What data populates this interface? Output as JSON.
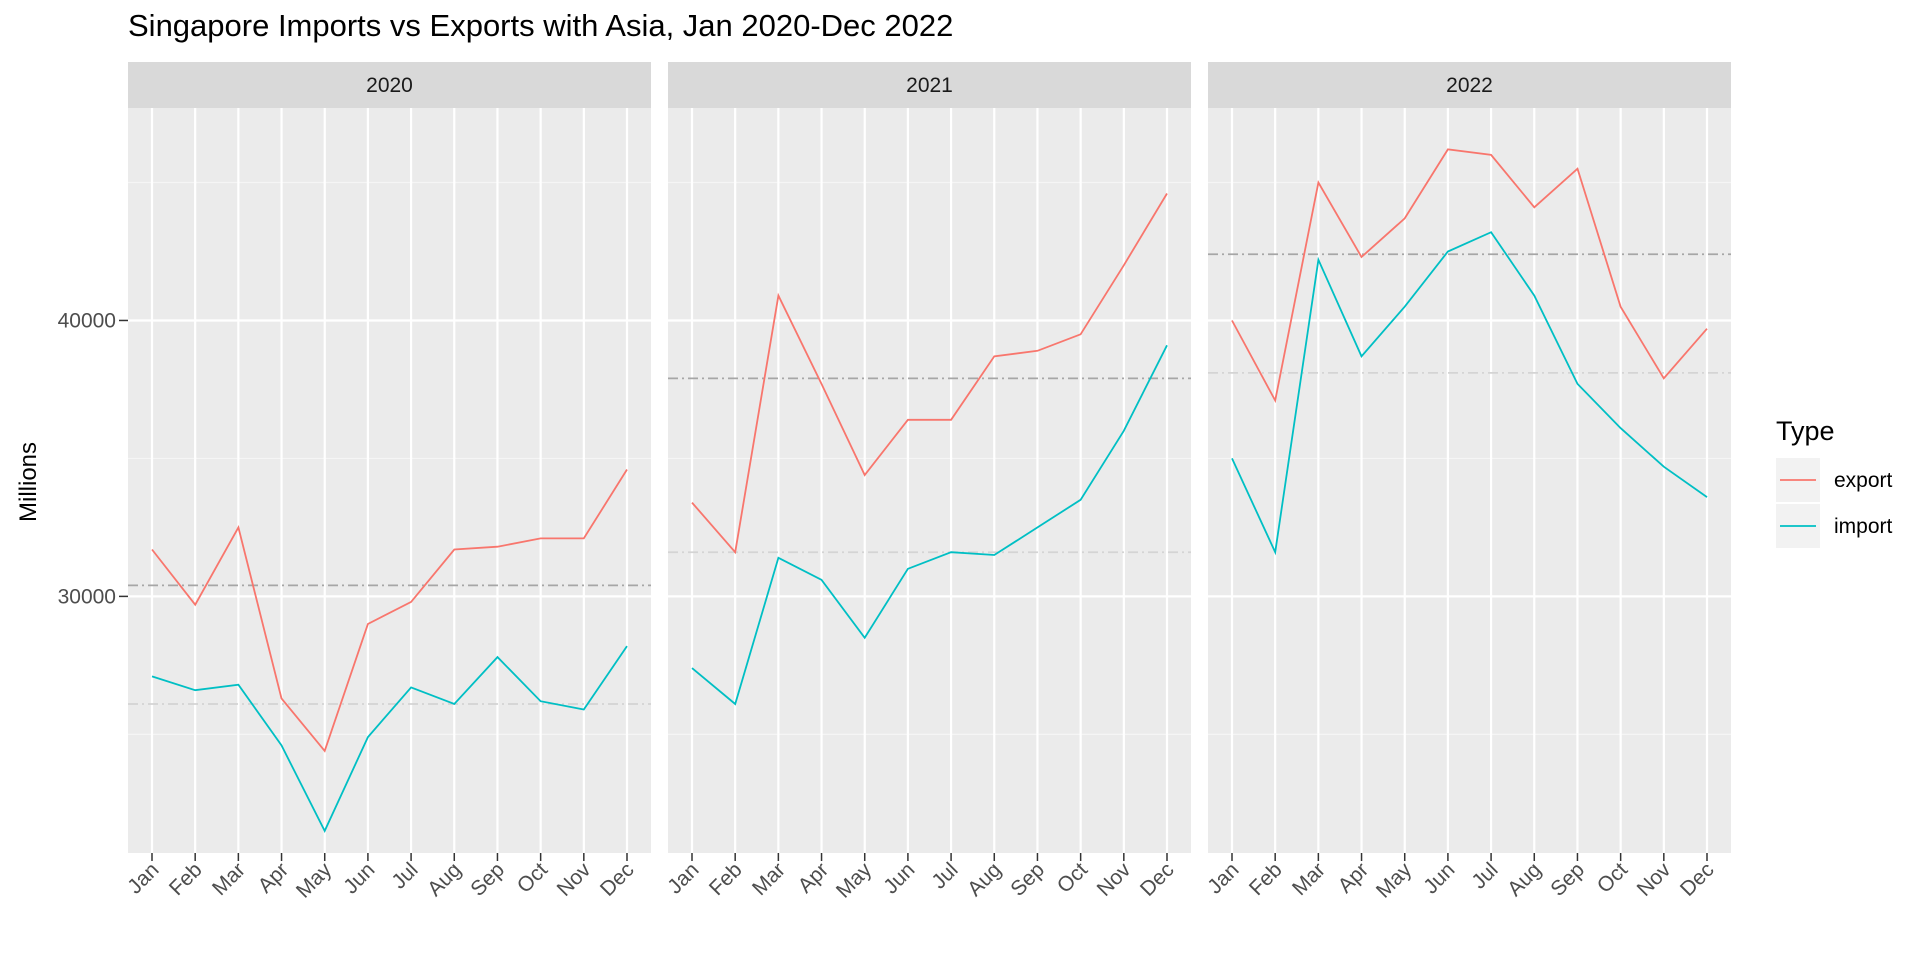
{
  "chart_data": {
    "type": "line",
    "title": "Singapore Imports vs Exports with Asia, Jan 2020-Dec 2022",
    "xlabel": "",
    "ylabel": "Millions",
    "ylim": [
      20700,
      47700
    ],
    "y_ticks": [
      30000,
      40000
    ],
    "grid": true,
    "facets": [
      "2020",
      "2021",
      "2022"
    ],
    "categories": [
      "Jan",
      "Feb",
      "Mar",
      "Apr",
      "May",
      "Jun",
      "Jul",
      "Aug",
      "Sep",
      "Oct",
      "Nov",
      "Dec"
    ],
    "legend": {
      "title": "Type",
      "position": "right"
    },
    "series": [
      {
        "name": "export",
        "color": "#F8766D",
        "values": {
          "2020": [
            31700,
            29700,
            32500,
            26300,
            24400,
            29000,
            29800,
            31700,
            31800,
            32100,
            32100,
            34600
          ],
          "2021": [
            33400,
            31600,
            40900,
            37700,
            34400,
            36400,
            36400,
            38700,
            38900,
            39500,
            42000,
            44600
          ],
          "2022": [
            40000,
            37100,
            45000,
            42300,
            43700,
            46200,
            46000,
            44100,
            45500,
            40500,
            37900,
            39700
          ]
        }
      },
      {
        "name": "import",
        "color": "#00BFC4",
        "values": {
          "2020": [
            27100,
            26600,
            26800,
            24600,
            21500,
            24900,
            26700,
            26100,
            27800,
            26200,
            25900,
            28200
          ],
          "2021": [
            27400,
            26100,
            31400,
            30600,
            28500,
            31000,
            31600,
            31500,
            32500,
            33500,
            36000,
            39100
          ],
          "2022": [
            35000,
            31600,
            42200,
            38700,
            40500,
            42500,
            43200,
            40900,
            37700,
            36100,
            34700,
            33600
          ]
        }
      }
    ],
    "reference_lines": [
      {
        "series": "export",
        "color": "#a6a6a6",
        "values": {
          "2020": 30400,
          "2021": 37900,
          "2022": 42400
        }
      },
      {
        "series": "import",
        "color": "#d4d4d4",
        "values": {
          "2020": 26100,
          "2021": 31600,
          "2022": 38100
        }
      }
    ]
  }
}
